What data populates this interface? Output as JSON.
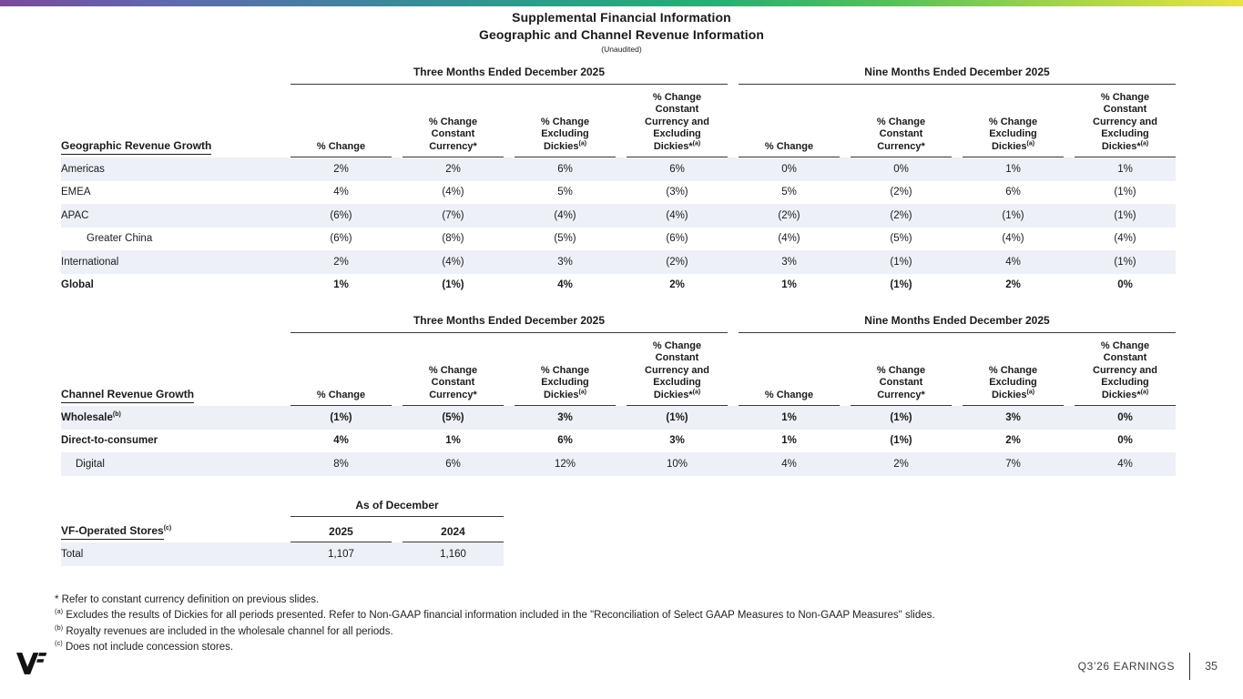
{
  "colors": {
    "gradient": [
      "#7a4a9d",
      "#5f6bae",
      "#41839f",
      "#2c9d8a",
      "#27ad74",
      "#55c05c",
      "#a5d44d",
      "#e8e441"
    ],
    "row_shade": "#edf0f7",
    "text": "#1b1b1b",
    "rule_line": "#3a3a3a"
  },
  "title": {
    "line1": "Supplemental Financial Information",
    "line2": "Geographic and Channel Revenue Information",
    "line3": "(Unaudited)"
  },
  "periods": {
    "three_months": "Three Months Ended December 2025",
    "nine_months": "Nine Months Ended December 2025"
  },
  "metric_columns": [
    {
      "lines": [
        "% Change"
      ]
    },
    {
      "lines": [
        "% Change",
        "Constant",
        "Currency*"
      ]
    },
    {
      "lines": [
        "% Change",
        "Excluding",
        "Dickies"
      ],
      "sup": "(a)"
    },
    {
      "lines": [
        "% Change",
        "Constant",
        "Currency and",
        "Excluding",
        "Dickies*"
      ],
      "sup": "(a)"
    }
  ],
  "geographic_table": {
    "label": "Geographic Revenue Growth",
    "rows": [
      {
        "label": "Americas",
        "values": [
          "2%",
          "2%",
          "6%",
          "6%",
          "0%",
          "0%",
          "1%",
          "1%"
        ]
      },
      {
        "label": "EMEA",
        "values": [
          "4%",
          "(4%)",
          "5%",
          "(3%)",
          "5%",
          "(2%)",
          "6%",
          "(1%)"
        ]
      },
      {
        "label": "APAC",
        "values": [
          "(6%)",
          "(7%)",
          "(4%)",
          "(4%)",
          "(2%)",
          "(2%)",
          "(1%)",
          "(1%)"
        ]
      },
      {
        "label": "Greater China",
        "indent": "lg",
        "values": [
          "(6%)",
          "(8%)",
          "(5%)",
          "(6%)",
          "(4%)",
          "(5%)",
          "(4%)",
          "(4%)"
        ]
      },
      {
        "label": "International",
        "values": [
          "2%",
          "(4%)",
          "3%",
          "(2%)",
          "3%",
          "(1%)",
          "4%",
          "(1%)"
        ]
      },
      {
        "label": "Global",
        "bold": true,
        "values": [
          "1%",
          "(1%)",
          "4%",
          "2%",
          "1%",
          "(1%)",
          "2%",
          "0%"
        ]
      }
    ]
  },
  "channel_table": {
    "label": "Channel Revenue Growth",
    "rows": [
      {
        "label": "Wholesale",
        "sup": "(b)",
        "bold": true,
        "values": [
          "(1%)",
          "(5%)",
          "3%",
          "(1%)",
          "1%",
          "(1%)",
          "3%",
          "0%"
        ]
      },
      {
        "label": "Direct-to-consumer",
        "bold": true,
        "values": [
          "4%",
          "1%",
          "6%",
          "3%",
          "1%",
          "(1%)",
          "2%",
          "0%"
        ]
      },
      {
        "label": "Digital",
        "indent": "sm",
        "values": [
          "8%",
          "6%",
          "12%",
          "10%",
          "4%",
          "2%",
          "7%",
          "4%"
        ]
      }
    ]
  },
  "stores_table": {
    "label": "VF-Operated Stores",
    "sup": "(c)",
    "span_header": "As of December",
    "year_columns": [
      "2025",
      "2024"
    ],
    "rows": [
      {
        "label": "Total",
        "values": [
          "1,107",
          "1,160"
        ]
      }
    ]
  },
  "footnotes": [
    {
      "marker": "*",
      "sup": false,
      "text": "Refer to constant currency definition on previous slides."
    },
    {
      "marker": "(a)",
      "sup": true,
      "text": "Excludes the results of Dickies for all periods presented. Refer to Non-GAAP financial information included in the \"Reconciliation of Select GAAP Measures to Non-GAAP Measures\" slides."
    },
    {
      "marker": "(b)",
      "sup": true,
      "text": "Royalty revenues are included in the wholesale channel for all periods."
    },
    {
      "marker": "(c)",
      "sup": true,
      "text": "Does not include concession stores."
    }
  ],
  "footer": {
    "logo": "VF",
    "label": "Q3’26 EARNINGS",
    "page": "35"
  }
}
